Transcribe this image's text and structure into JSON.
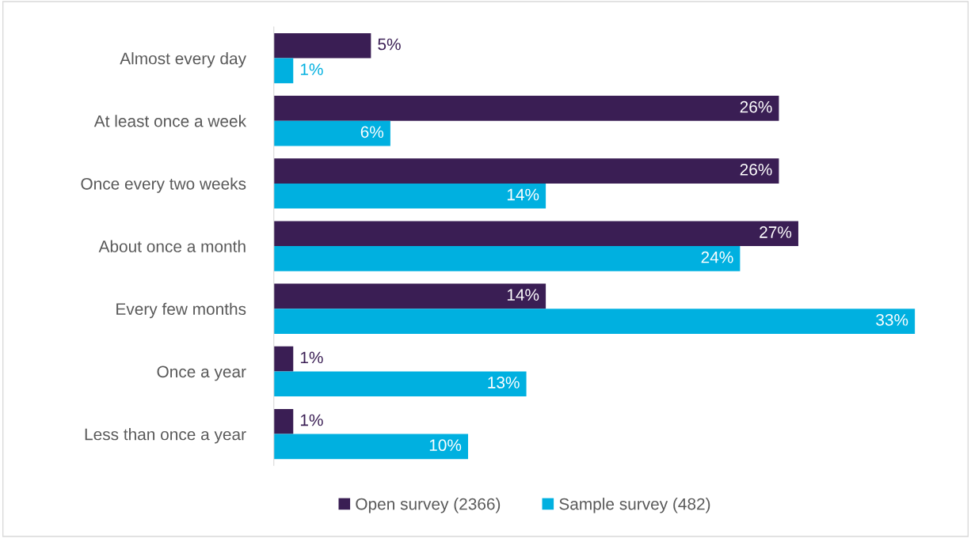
{
  "chart_data": {
    "type": "bar",
    "orientation": "horizontal",
    "categories": [
      "Almost every day",
      "At least once a week",
      "Once every two weeks",
      "About once a month",
      "Every few months",
      "Once a year",
      "Less than once a year"
    ],
    "series": [
      {
        "name": "Open survey (2366)",
        "color": "#3a1e54",
        "values": [
          5,
          26,
          26,
          27,
          14,
          1,
          1
        ],
        "value_labels": [
          "5%",
          "26%",
          "26%",
          "27%",
          "14%",
          "1%",
          "1%"
        ]
      },
      {
        "name": "Sample survey (482)",
        "color": "#00b0e0",
        "values": [
          1,
          6,
          14,
          24,
          33,
          13,
          10
        ],
        "value_labels": [
          "1%",
          "6%",
          "14%",
          "24%",
          "33%",
          "13%",
          "10%"
        ]
      }
    ],
    "legend": "bottom",
    "grid": false
  }
}
